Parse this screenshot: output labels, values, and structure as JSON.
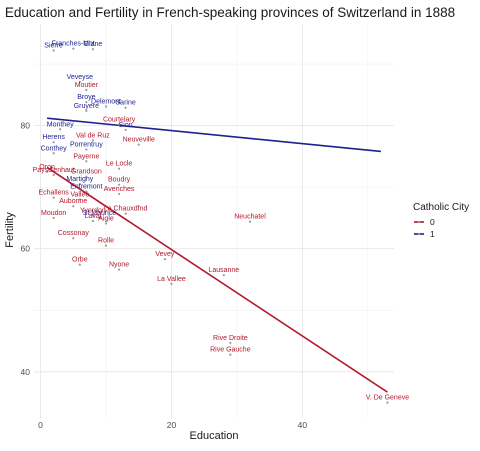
{
  "chart_data": {
    "type": "scatter",
    "title": "Education and Fertility in French-speaking provinces of Switzerland in 1888",
    "xlabel": "Education",
    "ylabel": "Fertility",
    "xlim": [
      -1,
      54
    ],
    "ylim": [
      32.5,
      96.5
    ],
    "x_ticks": [
      0,
      20,
      40
    ],
    "y_ticks": [
      40,
      60,
      80
    ],
    "grid": true,
    "legend": {
      "title": "Catholic City",
      "position": "right",
      "entries": [
        {
          "label": "0",
          "color": "#b2182b"
        },
        {
          "label": "1",
          "color": "#1f1f8f"
        }
      ]
    },
    "series": [
      {
        "group": "1",
        "color": "#1f1f8f",
        "points": [
          {
            "label": "Franches-Mnt",
            "x": 5,
            "y": 92.5
          },
          {
            "label": "Sierre",
            "x": 2,
            "y": 92.2
          },
          {
            "label": "Glane",
            "x": 8,
            "y": 92.4
          },
          {
            "label": "Veveyse",
            "x": 6,
            "y": 87.1
          },
          {
            "label": "Broye",
            "x": 7,
            "y": 83.8
          },
          {
            "label": "Delemont",
            "x": 10,
            "y": 83.1
          },
          {
            "label": "Sarine",
            "x": 13,
            "y": 82.9
          },
          {
            "label": "Gruyere",
            "x": 7,
            "y": 82.4
          },
          {
            "label": "Monthey",
            "x": 3,
            "y": 79.4
          },
          {
            "label": "Sion",
            "x": 13,
            "y": 79.3
          },
          {
            "label": "Herens",
            "x": 2,
            "y": 77.3
          },
          {
            "label": "Porrentruy",
            "x": 7,
            "y": 76.1
          },
          {
            "label": "Conthey",
            "x": 2,
            "y": 75.5
          },
          {
            "label": "Martigny",
            "x": 6,
            "y": 70.5
          },
          {
            "label": "Entremont",
            "x": 7,
            "y": 69.3
          },
          {
            "label": "St Maurice",
            "x": 9,
            "y": 65.0
          }
        ],
        "trend": {
          "x": [
            1,
            52
          ],
          "y": [
            81.2,
            75.8
          ]
        }
      },
      {
        "group": "0",
        "color": "#b2182b",
        "points": [
          {
            "label": "Moutier",
            "x": 7,
            "y": 85.8
          },
          {
            "label": "Courtelary",
            "x": 12,
            "y": 80.2
          },
          {
            "label": "Val de Ruz",
            "x": 8,
            "y": 77.6
          },
          {
            "label": "Neuveville",
            "x": 15,
            "y": 76.9
          },
          {
            "label": "Oron",
            "x": 1,
            "y": 72.5
          },
          {
            "label": "Payerne",
            "x": 7,
            "y": 74.2
          },
          {
            "label": "Le Locle",
            "x": 12,
            "y": 73.0
          },
          {
            "label": "Grandson",
            "x": 7,
            "y": 71.7
          },
          {
            "label": "Paysd'enhaut",
            "x": 2,
            "y": 72.0
          },
          {
            "label": "Boudry",
            "x": 12,
            "y": 70.4
          },
          {
            "label": "Echallens",
            "x": 2,
            "y": 68.3
          },
          {
            "label": "Vallee",
            "x": 6,
            "y": 68.0
          },
          {
            "label": "Avenches",
            "x": 12,
            "y": 68.9
          },
          {
            "label": "Yverdon",
            "x": 8,
            "y": 65.4
          },
          {
            "label": "La Chauxdfnd",
            "x": 13,
            "y": 65.7
          },
          {
            "label": "Aubonne",
            "x": 5,
            "y": 66.9
          },
          {
            "label": "Moudon",
            "x": 2,
            "y": 65.0
          },
          {
            "label": "Aigle",
            "x": 10,
            "y": 64.1
          },
          {
            "label": "Laval",
            "x": 8,
            "y": 64.5
          },
          {
            "label": "Neuchatel",
            "x": 32,
            "y": 64.4
          },
          {
            "label": "Cossonay",
            "x": 5,
            "y": 61.7
          },
          {
            "label": "Rolle",
            "x": 10,
            "y": 60.5
          },
          {
            "label": "Orbe",
            "x": 6,
            "y": 57.4
          },
          {
            "label": "Nyone",
            "x": 12,
            "y": 56.6
          },
          {
            "label": "Vevey",
            "x": 19,
            "y": 58.3
          },
          {
            "label": "Lausanne",
            "x": 28,
            "y": 55.7
          },
          {
            "label": "La Vallee",
            "x": 20,
            "y": 54.3
          },
          {
            "label": "Rive Droite",
            "x": 29,
            "y": 44.7
          },
          {
            "label": "Rive Gauche",
            "x": 29,
            "y": 42.8
          },
          {
            "label": "V. De Geneve",
            "x": 53,
            "y": 35.0
          }
        ],
        "trend": {
          "x": [
            1,
            53
          ],
          "y": [
            73.2,
            36.7
          ]
        }
      }
    ]
  }
}
